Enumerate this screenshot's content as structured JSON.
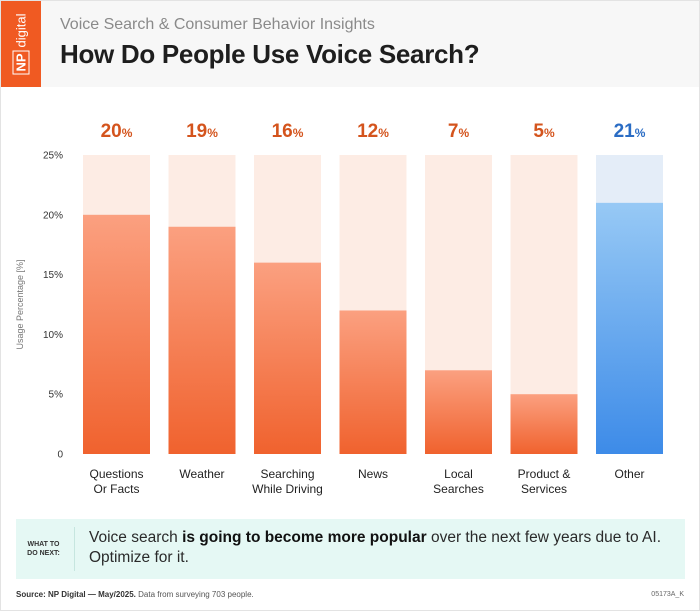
{
  "header": {
    "logo_np": "NP",
    "logo_word": "digital",
    "subtitle": "Voice Search & Consumer Behavior Insights",
    "title": "How Do People Use Voice Search?"
  },
  "colors": {
    "brand": "#f05a22",
    "bar_orange_top": "#fba080",
    "bar_orange_bottom": "#f0622e",
    "bar_orange_bg": "#fdece4",
    "bar_blue_top": "#97c9f5",
    "bar_blue_bottom": "#3d8be8",
    "bar_blue_bg": "#e4edf8",
    "label_orange": "#d4541d",
    "label_blue": "#2a6cc4",
    "callout_bg": "#e5f8f4"
  },
  "chart_data": {
    "type": "bar",
    "categories": [
      [
        "Questions",
        "Or Facts"
      ],
      [
        "Weather"
      ],
      [
        "Searching",
        "While Driving"
      ],
      [
        "News"
      ],
      [
        "Local",
        "Searches"
      ],
      [
        "Product &",
        "Services"
      ],
      [
        "Other"
      ]
    ],
    "values": [
      20,
      19,
      16,
      12,
      7,
      5,
      21
    ],
    "value_labels": [
      "20",
      "19",
      "16",
      "12",
      "7",
      "5",
      "21"
    ],
    "value_suffix": "%",
    "highlight_last": true,
    "ylabel": "Usage Percentage [%]",
    "ylim": [
      0,
      25
    ],
    "yticks": [
      "0",
      "5%",
      "10%",
      "15%",
      "20%",
      "25%"
    ],
    "ytick_values": [
      0,
      5,
      10,
      15,
      20,
      25
    ],
    "grid": false
  },
  "callout": {
    "tag": "WHAT TO DO NEXT:",
    "text_before": "Voice search ",
    "text_bold": "is going to become more popular",
    "text_after": " over the next few years due to AI. Optimize for it."
  },
  "footer": {
    "source_label": "Source: NP Digital — May/2025.",
    "source_text": " Data from surveying 703 people.",
    "code": "05173A_K"
  }
}
